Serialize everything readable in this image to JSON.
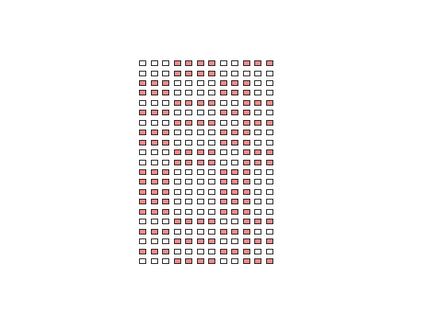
{
  "grid": {
    "filled_color": "#f28b8b",
    "empty_color": "#ffffff",
    "border_color": "#1a1a1a",
    "rows": [
      "000111100111",
      "000111100000",
      "111000011100",
      "111000011100",
      "000111100111",
      "111000011100",
      "000111100111",
      "111000011100",
      "111000011100",
      "000111100111",
      "000111100111",
      "111000011100",
      "111000011100",
      "111000011100",
      "111000011100",
      "111000011100",
      "000111100111",
      "111000011100",
      "000111100111",
      "111000011100",
      "000111100111"
    ]
  }
}
